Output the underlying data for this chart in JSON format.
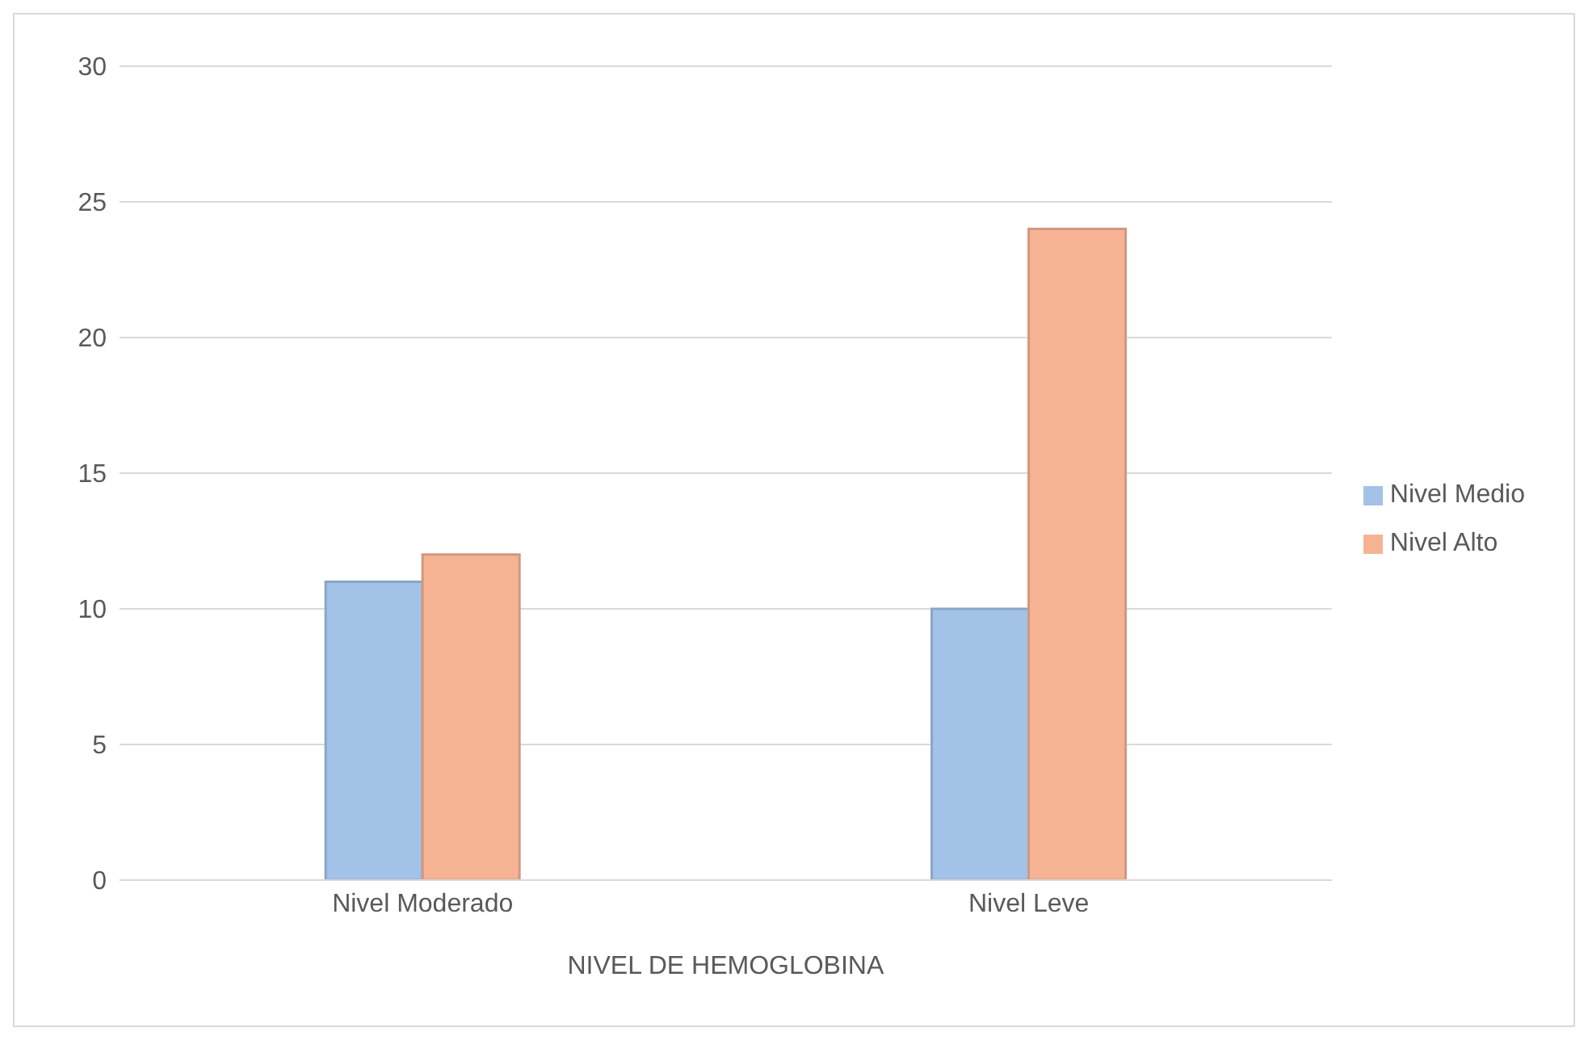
{
  "chart_data": {
    "type": "bar",
    "xlabel": "NIVEL DE HEMOGLOBINA",
    "categories": [
      "Nivel Moderado",
      "Nivel Leve"
    ],
    "series": [
      {
        "name": "Nivel Medio",
        "color": "#a3c2e8",
        "values": [
          11,
          10
        ]
      },
      {
        "name": "Nivel Alto",
        "color": "#f6b394",
        "values": [
          12,
          24
        ]
      }
    ],
    "ylim": [
      0,
      30
    ],
    "yticks": [
      0,
      5,
      10,
      15,
      20,
      25,
      30
    ],
    "grid": "y",
    "legend": "right"
  }
}
